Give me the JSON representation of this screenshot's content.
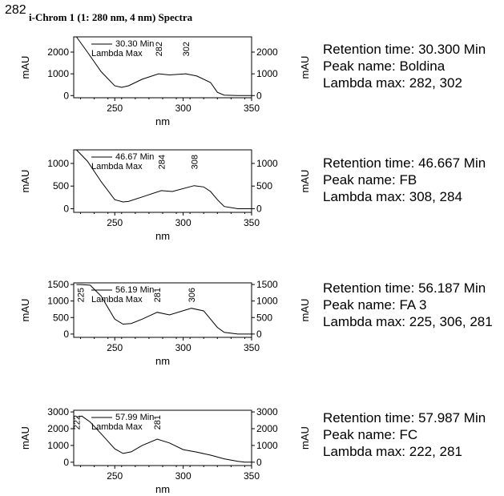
{
  "page": {
    "number": "282",
    "title": "i-Chrom 1 (1: 280 nm, 4 nm) Spectra"
  },
  "info_labels": {
    "retention": "Retention time:",
    "peak": "Peak name:",
    "lambda": "Lambda max:"
  },
  "chart_data": [
    {
      "type": "line",
      "xlabel": "nm",
      "ylabel": "mAU",
      "xlim": [
        220,
        350
      ],
      "ylim": [
        -100,
        2700
      ],
      "xticks": [
        250,
        300,
        350
      ],
      "yticks": [
        0,
        1000,
        2000
      ],
      "legend": [
        "30.30 Min",
        "Lambda Max"
      ],
      "peak_labels": [
        {
          "text": "282",
          "x": 282
        },
        {
          "text": "302",
          "x": 302
        }
      ],
      "series": [
        {
          "x": [
            222,
            230,
            240,
            250,
            255,
            260,
            270,
            282,
            290,
            302,
            310,
            320,
            325,
            330,
            340,
            350
          ],
          "y": [
            2700,
            2000,
            1100,
            450,
            380,
            450,
            750,
            1000,
            950,
            1000,
            900,
            600,
            150,
            20,
            0,
            0
          ]
        }
      ],
      "info": {
        "retention": "30.300 Min",
        "peak": "Boldina",
        "lambda": "282, 302"
      }
    },
    {
      "type": "line",
      "xlabel": "nm",
      "ylabel": "mAU",
      "xlim": [
        220,
        350
      ],
      "ylim": [
        -80,
        1300
      ],
      "xticks": [
        250,
        300,
        350
      ],
      "yticks": [
        0,
        500,
        1000
      ],
      "legend": [
        "46.67 Min",
        "Lambda Max"
      ],
      "peak_labels": [
        {
          "text": "284",
          "x": 284
        },
        {
          "text": "308",
          "x": 308
        }
      ],
      "series": [
        {
          "x": [
            222,
            230,
            240,
            250,
            256,
            260,
            270,
            284,
            292,
            308,
            315,
            320,
            325,
            330,
            340,
            350
          ],
          "y": [
            1300,
            1050,
            600,
            200,
            150,
            160,
            260,
            400,
            380,
            510,
            480,
            380,
            200,
            50,
            0,
            0
          ]
        }
      ],
      "info": {
        "retention": "46.667 Min",
        "peak": "FB",
        "lambda": "308, 284"
      }
    },
    {
      "type": "line",
      "xlabel": "nm",
      "ylabel": "mAU",
      "xlim": [
        220,
        350
      ],
      "ylim": [
        -100,
        1550
      ],
      "xticks": [
        250,
        300,
        350
      ],
      "yticks": [
        0,
        500,
        1000,
        1500
      ],
      "legend": [
        "56.19 Min",
        "Lambda Max"
      ],
      "peak_labels": [
        {
          "text": "225",
          "x": 225
        },
        {
          "text": "281",
          "x": 281
        },
        {
          "text": "306",
          "x": 306
        }
      ],
      "series": [
        {
          "x": [
            222,
            225,
            232,
            240,
            250,
            256,
            262,
            270,
            281,
            290,
            306,
            315,
            320,
            325,
            330,
            340,
            350
          ],
          "y": [
            1500,
            1500,
            1480,
            1150,
            450,
            300,
            320,
            450,
            660,
            580,
            780,
            700,
            450,
            200,
            50,
            0,
            0
          ]
        }
      ],
      "info": {
        "retention": "56.187 Min",
        "peak": "FA 3",
        "lambda": "225, 306, 281"
      }
    },
    {
      "type": "line",
      "xlabel": "nm",
      "ylabel": "mAU",
      "xlim": [
        220,
        350
      ],
      "ylim": [
        -200,
        3100
      ],
      "xticks": [
        250,
        300,
        350
      ],
      "yticks": [
        0,
        1000,
        2000,
        3000
      ],
      "legend": [
        "57.99 Min",
        "Lambda Max"
      ],
      "peak_labels": [
        {
          "text": "222",
          "x": 222
        },
        {
          "text": "281",
          "x": 281
        }
      ],
      "series": [
        {
          "x": [
            222,
            226,
            232,
            240,
            250,
            256,
            262,
            270,
            281,
            290,
            300,
            310,
            320,
            330,
            340,
            345,
            350
          ],
          "y": [
            2700,
            2750,
            2400,
            1700,
            800,
            520,
            620,
            1000,
            1380,
            1150,
            750,
            600,
            420,
            200,
            50,
            0,
            0
          ]
        }
      ],
      "info": {
        "retention": "57.987 Min",
        "peak": "FC",
        "lambda": "222, 281"
      }
    }
  ]
}
